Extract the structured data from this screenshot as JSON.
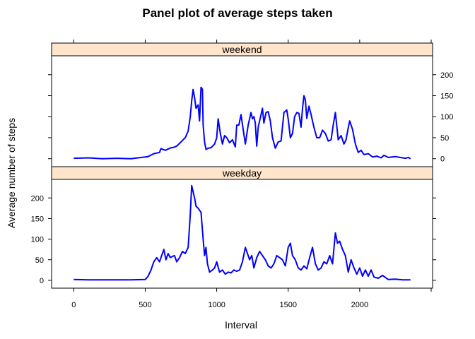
{
  "chart_data": {
    "type": "line",
    "title": "Panel plot of average steps taken",
    "xlabel": "Interval",
    "ylabel": "Average number of steps",
    "xlim": [
      -155,
      2510
    ],
    "ylim": [
      -19,
      245
    ],
    "x_ticks": [
      0,
      500,
      1000,
      1500,
      2000
    ],
    "y_ticks": [
      0,
      50,
      100,
      150,
      200
    ],
    "color": "#0000ff",
    "strip_color": "#ffe5cc",
    "panels": [
      {
        "name": "weekend",
        "x": [
          0,
          100,
          200,
          300,
          400,
          500,
          520,
          560,
          600,
          610,
          640,
          680,
          700,
          720,
          750,
          780,
          800,
          815,
          825,
          835,
          845,
          855,
          870,
          880,
          890,
          900,
          905,
          915,
          925,
          940,
          960,
          985,
          1000,
          1010,
          1025,
          1040,
          1055,
          1070,
          1090,
          1110,
          1130,
          1140,
          1155,
          1170,
          1185,
          1200,
          1220,
          1240,
          1250,
          1260,
          1270,
          1280,
          1290,
          1300,
          1320,
          1330,
          1345,
          1360,
          1375,
          1390,
          1410,
          1430,
          1450,
          1470,
          1490,
          1500,
          1515,
          1530,
          1545,
          1560,
          1575,
          1590,
          1600,
          1610,
          1620,
          1630,
          1645,
          1660,
          1680,
          1700,
          1720,
          1740,
          1760,
          1780,
          1800,
          1815,
          1830,
          1850,
          1870,
          1890,
          1905,
          1915,
          1930,
          1950,
          1970,
          1990,
          2010,
          2030,
          2060,
          2090,
          2120,
          2150,
          2170,
          2200,
          2250,
          2300,
          2320,
          2340,
          2355
        ],
        "values": [
          1,
          2,
          0,
          1,
          0,
          4,
          5,
          12,
          15,
          24,
          20,
          26,
          27,
          30,
          40,
          50,
          66,
          100,
          138,
          165,
          145,
          120,
          128,
          90,
          170,
          165,
          80,
          40,
          22,
          25,
          26,
          35,
          50,
          95,
          60,
          35,
          55,
          50,
          38,
          45,
          28,
          80,
          80,
          105,
          70,
          35,
          80,
          110,
          95,
          100,
          85,
          30,
          75,
          90,
          120,
          85,
          110,
          112,
          90,
          50,
          25,
          40,
          42,
          110,
          116,
          95,
          50,
          60,
          100,
          110,
          108,
          75,
          120,
          150,
          140,
          96,
          125,
          105,
          75,
          50,
          50,
          68,
          60,
          42,
          45,
          80,
          110,
          45,
          55,
          35,
          45,
          65,
          90,
          70,
          35,
          15,
          20,
          10,
          12,
          4,
          6,
          2,
          8,
          3,
          5,
          2,
          1,
          3,
          0
        ]
      },
      {
        "name": "weekday",
        "x": [
          0,
          100,
          200,
          300,
          400,
          500,
          520,
          540,
          560,
          580,
          600,
          615,
          630,
          645,
          660,
          675,
          690,
          705,
          720,
          740,
          760,
          780,
          800,
          815,
          825,
          835,
          845,
          855,
          870,
          890,
          905,
          915,
          925,
          935,
          950,
          970,
          985,
          1000,
          1020,
          1040,
          1060,
          1080,
          1100,
          1120,
          1140,
          1160,
          1180,
          1200,
          1215,
          1230,
          1245,
          1260,
          1280,
          1300,
          1320,
          1340,
          1360,
          1380,
          1400,
          1420,
          1440,
          1460,
          1480,
          1500,
          1515,
          1530,
          1550,
          1570,
          1590,
          1610,
          1630,
          1650,
          1670,
          1690,
          1710,
          1730,
          1750,
          1770,
          1790,
          1810,
          1830,
          1845,
          1860,
          1880,
          1900,
          1920,
          1940,
          1960,
          1980,
          2000,
          2020,
          2040,
          2060,
          2080,
          2100,
          2130,
          2160,
          2200,
          2250,
          2300,
          2355
        ],
        "values": [
          2,
          1,
          1,
          1,
          1,
          2,
          10,
          25,
          45,
          55,
          45,
          60,
          75,
          50,
          65,
          55,
          58,
          60,
          45,
          55,
          70,
          65,
          80,
          160,
          230,
          215,
          200,
          180,
          175,
          165,
          100,
          60,
          80,
          40,
          20,
          25,
          30,
          45,
          20,
          25,
          15,
          20,
          18,
          25,
          22,
          25,
          45,
          80,
          65,
          50,
          60,
          30,
          55,
          70,
          60,
          50,
          35,
          30,
          40,
          60,
          55,
          50,
          35,
          80,
          90,
          60,
          50,
          30,
          25,
          35,
          28,
          55,
          80,
          40,
          25,
          30,
          45,
          40,
          60,
          40,
          115,
          90,
          95,
          75,
          60,
          20,
          50,
          30,
          15,
          30,
          10,
          25,
          10,
          25,
          8,
          5,
          12,
          2,
          3,
          1,
          1
        ]
      }
    ]
  }
}
